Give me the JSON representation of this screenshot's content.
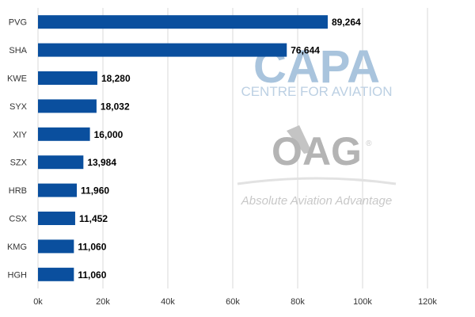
{
  "chart_data": {
    "type": "bar",
    "orientation": "horizontal",
    "categories": [
      "PVG",
      "SHA",
      "KWE",
      "SYX",
      "XIY",
      "SZX",
      "HRB",
      "CSX",
      "KMG",
      "HGH"
    ],
    "values": [
      89264,
      76644,
      18280,
      18032,
      16000,
      13984,
      11960,
      11452,
      11060,
      11060
    ],
    "value_labels": [
      "89,264",
      "76,644",
      "18,280",
      "18,032",
      "16,000",
      "13,984",
      "11,960",
      "11,452",
      "11,060",
      "11,060"
    ],
    "xlim": [
      0,
      120000
    ],
    "x_ticks": [
      0,
      20000,
      40000,
      60000,
      80000,
      100000,
      120000
    ],
    "x_tick_labels": [
      "0k",
      "20k",
      "40k",
      "60k",
      "80k",
      "100k",
      "120k"
    ],
    "grid": "vertical",
    "legend": "none",
    "bar_color": "#0a4f9e",
    "grid_color": "#d9d9d9"
  },
  "watermarks": {
    "capa_logo": "CAPA",
    "capa_subtitle": "CENTRE FOR AVIATION",
    "oag_logo": "OAG",
    "oag_registered": "®",
    "oag_tagline": "Absolute Aviation Advantage"
  }
}
